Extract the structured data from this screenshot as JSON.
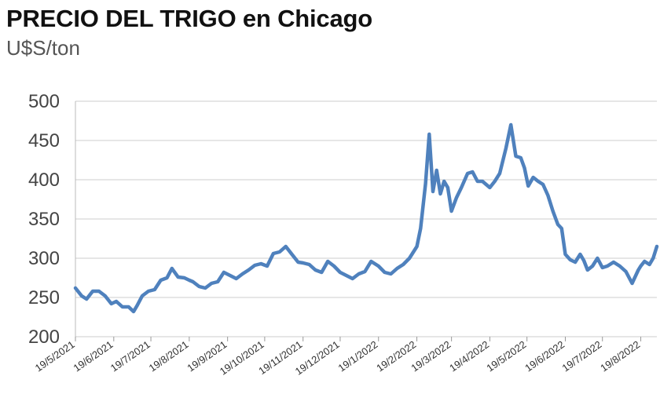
{
  "chart_data": {
    "type": "line",
    "title": "PRECIO DEL TRIGO en Chicago",
    "subtitle": "U$S/ton",
    "xlabel": "",
    "ylabel": "",
    "ylim": [
      200,
      500
    ],
    "yticks": [
      "200",
      "250",
      "300",
      "350",
      "400",
      "450",
      "500"
    ],
    "xticks": [
      "19/5/2021",
      "19/6/2021",
      "19/7/2021",
      "19/8/2021",
      "19/9/2021",
      "19/10/2021",
      "19/11/2021",
      "19/12/2021",
      "19/1/2022",
      "19/2/2022",
      "19/3/2022",
      "19/4/2022",
      "19/5/2022",
      "19/6/2022",
      "19/7/2022",
      "19/8/2022"
    ],
    "grid": true,
    "line_color": "#4f81bd",
    "series": [
      {
        "x": [
          "2021-05-19",
          "2021-05-24",
          "2021-05-28",
          "2021-06-02",
          "2021-06-07",
          "2021-06-12",
          "2021-06-17",
          "2021-06-21",
          "2021-06-26",
          "2021-07-01",
          "2021-07-05",
          "2021-07-08",
          "2021-07-12",
          "2021-07-17",
          "2021-07-22",
          "2021-07-27",
          "2021-08-01",
          "2021-08-05",
          "2021-08-10",
          "2021-08-15",
          "2021-08-19",
          "2021-08-22",
          "2021-08-27",
          "2021-09-01",
          "2021-09-06",
          "2021-09-11",
          "2021-09-16",
          "2021-09-21",
          "2021-09-26",
          "2021-10-01",
          "2021-10-06",
          "2021-10-11",
          "2021-10-16",
          "2021-10-21",
          "2021-10-26",
          "2021-10-31",
          "2021-11-05",
          "2021-11-10",
          "2021-11-15",
          "2021-11-19",
          "2021-11-24",
          "2021-11-29",
          "2021-12-04",
          "2021-12-09",
          "2021-12-14",
          "2021-12-19",
          "2021-12-24",
          "2021-12-29",
          "2022-01-03",
          "2022-01-08",
          "2022-01-13",
          "2022-01-19",
          "2022-01-24",
          "2022-01-29",
          "2022-02-03",
          "2022-02-08",
          "2022-02-13",
          "2022-02-19",
          "2022-02-22",
          "2022-02-26",
          "2022-03-01",
          "2022-03-04",
          "2022-03-07",
          "2022-03-10",
          "2022-03-13",
          "2022-03-16",
          "2022-03-19",
          "2022-03-23",
          "2022-03-27",
          "2022-04-01",
          "2022-04-05",
          "2022-04-09",
          "2022-04-13",
          "2022-04-19",
          "2022-04-23",
          "2022-04-27",
          "2022-05-02",
          "2022-05-06",
          "2022-05-10",
          "2022-05-14",
          "2022-05-17",
          "2022-05-20",
          "2022-05-24",
          "2022-05-28",
          "2022-06-01",
          "2022-06-05",
          "2022-06-09",
          "2022-06-13",
          "2022-06-16",
          "2022-06-19",
          "2022-06-23",
          "2022-06-27",
          "2022-07-01",
          "2022-07-04",
          "2022-07-07",
          "2022-07-11",
          "2022-07-15",
          "2022-07-19",
          "2022-07-23",
          "2022-07-28",
          "2022-08-02",
          "2022-08-07",
          "2022-08-12",
          "2022-08-17",
          "2022-08-19",
          "2022-08-22",
          "2022-08-26",
          "2022-08-29",
          "2022-09-01"
        ],
        "values": [
          262,
          252,
          248,
          258,
          258,
          252,
          242,
          245,
          238,
          238,
          232,
          240,
          252,
          258,
          260,
          272,
          275,
          287,
          276,
          275,
          272,
          270,
          264,
          262,
          268,
          270,
          282,
          278,
          274,
          280,
          285,
          291,
          293,
          290,
          306,
          308,
          315,
          305,
          295,
          294,
          292,
          285,
          282,
          296,
          290,
          282,
          278,
          274,
          280,
          283,
          296,
          290,
          282,
          280,
          287,
          292,
          300,
          315,
          338,
          395,
          458,
          385,
          412,
          382,
          398,
          390,
          360,
          377,
          390,
          408,
          410,
          398,
          398,
          390,
          398,
          408,
          440,
          470,
          430,
          428,
          415,
          392,
          403,
          398,
          394,
          380,
          360,
          343,
          338,
          305,
          298,
          295,
          305,
          297,
          285,
          290,
          300,
          288,
          290,
          295,
          290,
          283,
          268,
          285,
          290,
          296,
          292,
          300,
          315
        ]
      }
    ]
  }
}
